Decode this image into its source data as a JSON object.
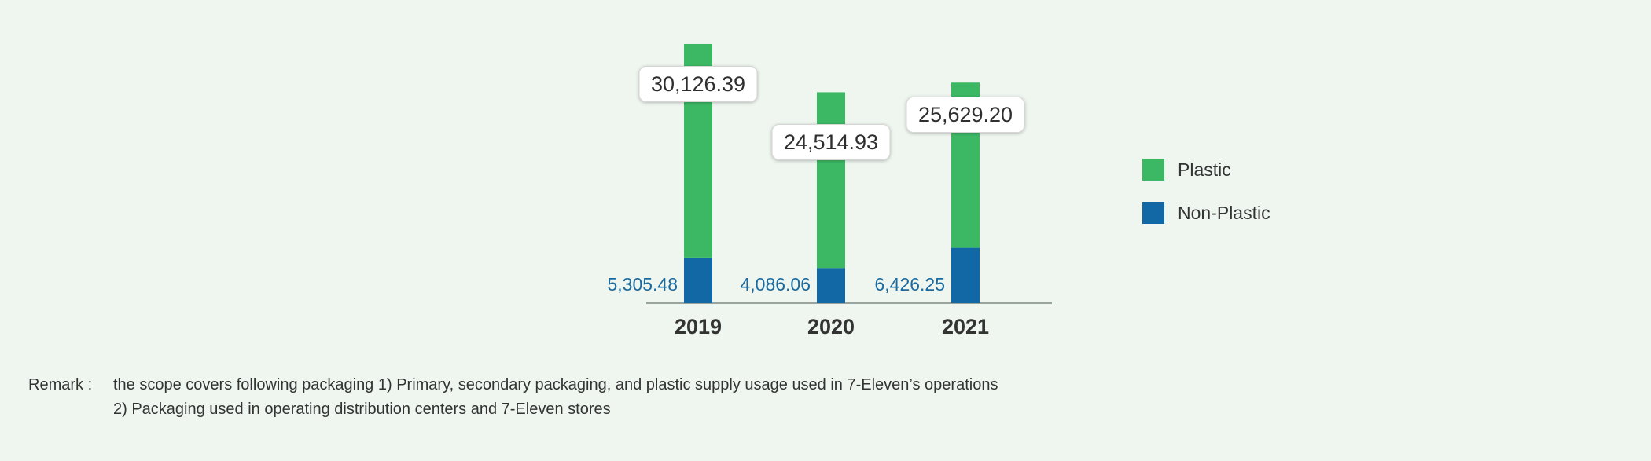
{
  "chart_data": {
    "type": "bar",
    "stacked": true,
    "categories": [
      "2019",
      "2020",
      "2021"
    ],
    "series": [
      {
        "name": "Non-Plastic",
        "values": [
          5305.48,
          4086.06,
          6426.25
        ],
        "labels": [
          "5,305.48",
          "4,086.06",
          "6,426.25"
        ],
        "color": "#1168a4"
      },
      {
        "name": "Plastic",
        "values": [
          24820.91,
          20428.87,
          19202.95
        ],
        "color": "#3cb864"
      }
    ],
    "totals": [
      30126.39,
      24514.93,
      25629.2
    ],
    "total_labels": [
      "30,126.39",
      "24,514.93",
      "25,629.20"
    ],
    "legend": [
      "Plastic",
      "Non-Plastic"
    ],
    "legend_position": "right",
    "axis_color": "#9aa5a0",
    "grid": false
  },
  "remark": {
    "label": "Remark :",
    "line1": "the scope covers following packaging 1) Primary, secondary packaging, and plastic supply usage  used in 7-Eleven’s operations",
    "line2": "2) Packaging used in operating distribution centers and 7-Eleven stores"
  }
}
